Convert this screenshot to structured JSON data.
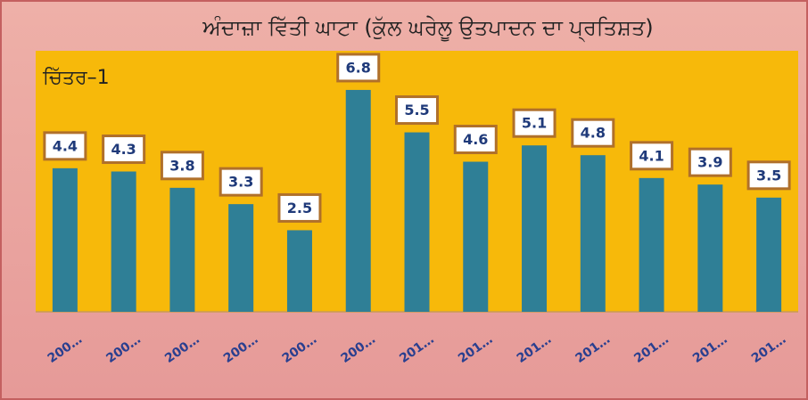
{
  "chart_data": {
    "type": "bar",
    "title": "ਅੰਦਾਜ਼ਾ ਵਿੱਤੀ ਘਾਟਾ (ਕੁੱਲ ਘਰੇਲੂ ਉਤਪਾਦਨ ਦਾ ਪ੍ਰਤਿਸ਼ਤ)",
    "annotation": "ਚਿੱਤਰ–1",
    "categories": [
      "200…",
      "200…",
      "200…",
      "200…",
      "200…",
      "200…",
      "201…",
      "201…",
      "201…",
      "201…",
      "201…",
      "201…",
      "201…"
    ],
    "values": [
      4.4,
      4.3,
      3.8,
      3.3,
      2.5,
      6.8,
      5.5,
      4.6,
      5.1,
      4.8,
      4.1,
      3.9,
      3.5
    ],
    "color": "#2f7f96",
    "ylim": [
      0,
      8
    ]
  }
}
